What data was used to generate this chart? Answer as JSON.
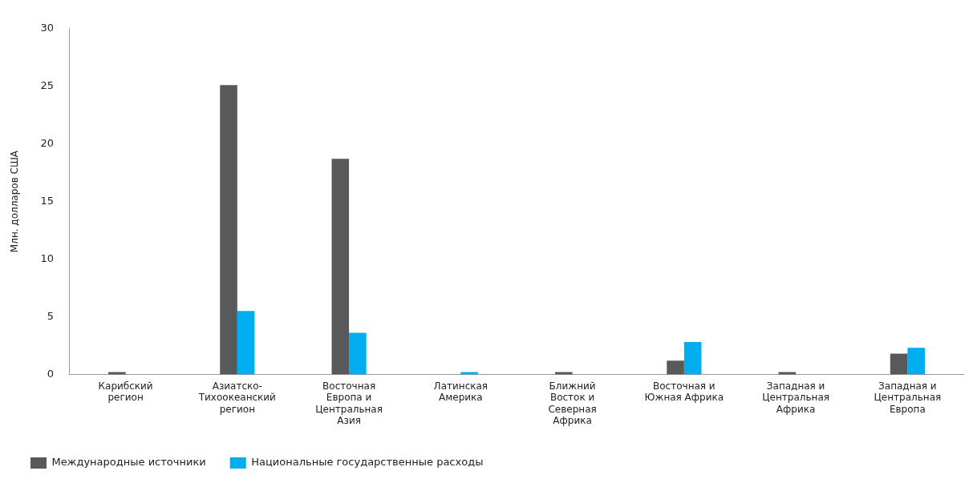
{
  "chart_data": {
    "type": "bar",
    "ylabel": "Млн. долларов США",
    "categories": [
      "Карибский регион",
      "Азиатско-Тихоокеанский регион",
      "Восточная Европа и Центральная Азия",
      "Латинская Америка",
      "Ближний Восток и Северная Африка",
      "Восточная и Южная Африка",
      "Западная и Центральная Африка",
      "Западная и Центральная Европа"
    ],
    "series": [
      {
        "name": "Международные источники",
        "color": "#58595b",
        "values": [
          0.2,
          25.1,
          18.7,
          0,
          0.2,
          1.2,
          0.2,
          1.8
        ]
      },
      {
        "name": "Национальные государственные расходы",
        "color": "#00aeef",
        "values": [
          0,
          5.5,
          3.6,
          0.2,
          0,
          2.8,
          0,
          2.3
        ]
      }
    ],
    "ylim": [
      0,
      30
    ],
    "yticks": [
      0,
      5,
      10,
      15,
      20,
      25,
      30
    ],
    "grid": false,
    "legend": "bottom left"
  }
}
